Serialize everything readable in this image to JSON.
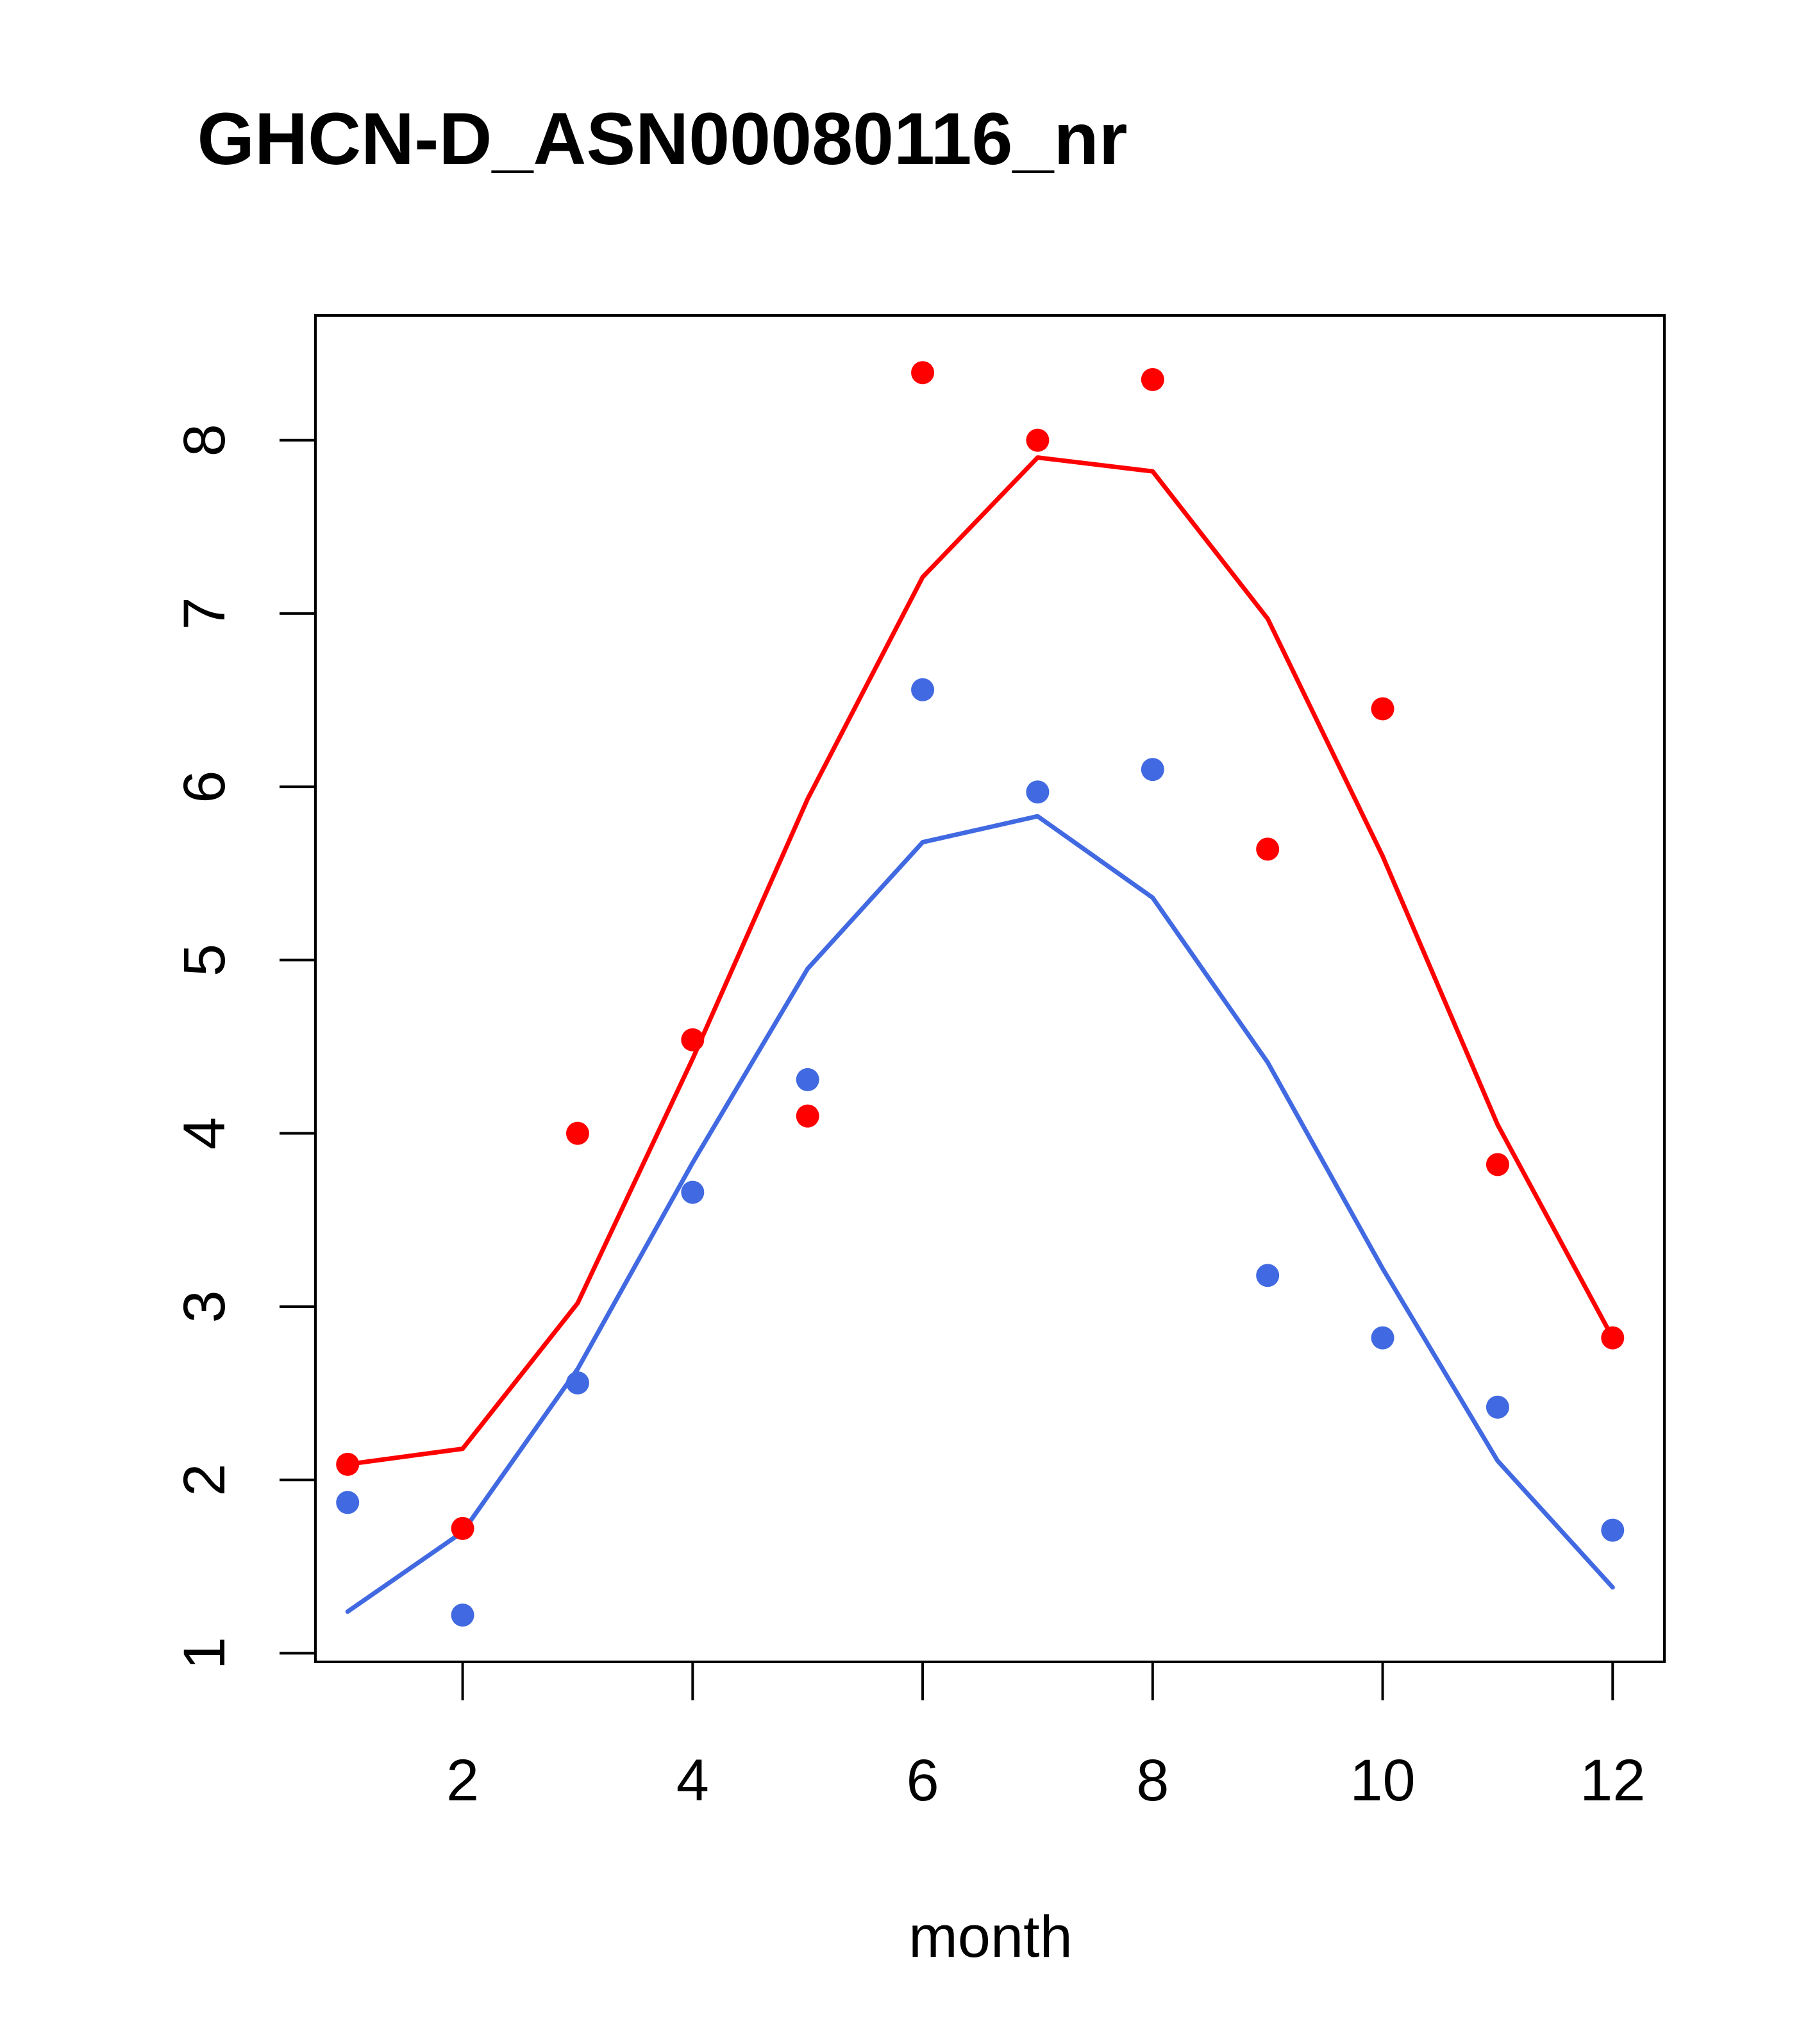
{
  "chart_data": {
    "type": "scatter",
    "title": "GHCN-D_ASN00080116_nr",
    "xlabel": "month",
    "ylabel": "",
    "xlim": [
      0.72,
      12.45
    ],
    "ylim": [
      0.95,
      8.72
    ],
    "xticks": [
      2,
      4,
      6,
      8,
      10,
      12
    ],
    "yticks": [
      1,
      2,
      3,
      4,
      5,
      6,
      7,
      8
    ],
    "x_tick_labels": [
      "2",
      "4",
      "6",
      "8",
      "10",
      "12"
    ],
    "y_tick_labels": [
      "1",
      "2",
      "3",
      "4",
      "5",
      "6",
      "7",
      "8"
    ],
    "grid": false,
    "legend": "none",
    "series": [
      {
        "color": "#ff0000",
        "x": [
          1,
          2,
          3,
          4,
          5,
          6,
          7,
          8,
          9,
          10,
          11,
          12
        ],
        "points": [
          2.09,
          1.72,
          4.0,
          4.54,
          4.1,
          8.39,
          8.0,
          8.35,
          5.64,
          6.45,
          3.82,
          2.82
        ],
        "line": [
          2.09,
          2.18,
          3.02,
          4.43,
          5.93,
          7.21,
          7.9,
          7.82,
          6.97,
          5.6,
          4.05,
          2.82
        ]
      },
      {
        "color": "#4169e1",
        "x": [
          1,
          2,
          3,
          4,
          5,
          6,
          7,
          8,
          9,
          10,
          11,
          12
        ],
        "points": [
          1.87,
          1.22,
          2.56,
          3.66,
          4.31,
          6.56,
          5.97,
          6.1,
          3.18,
          2.82,
          2.42,
          1.71
        ],
        "line": [
          1.24,
          1.7,
          2.64,
          3.83,
          4.95,
          5.68,
          5.83,
          5.36,
          4.41,
          3.22,
          2.11,
          1.38
        ]
      }
    ]
  }
}
